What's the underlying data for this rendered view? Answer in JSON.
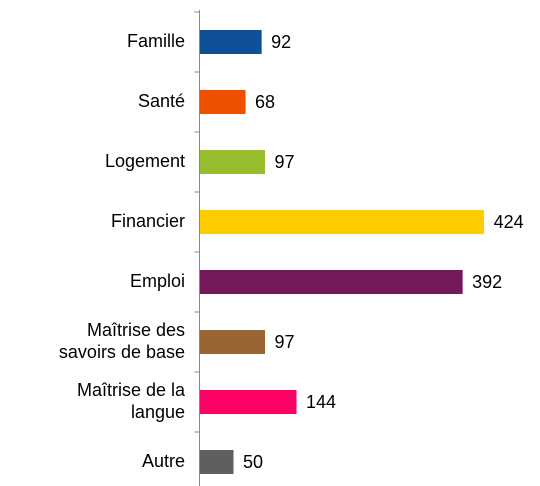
{
  "chart_data": {
    "type": "bar",
    "orientation": "horizontal",
    "categories": [
      "Famille",
      "Santé",
      "Logement",
      "Financier",
      "Emploi",
      "Maîtrise des\nsavoirs de base",
      "Maîtrise de la\nlangue",
      "Autre"
    ],
    "values": [
      92,
      68,
      97,
      424,
      392,
      97,
      144,
      50
    ],
    "colors": [
      "#0e4f96",
      "#ef5000",
      "#96bd2d",
      "#ffcc00",
      "#76185c",
      "#996633",
      "#ff0066",
      "#5f5f5f"
    ]
  }
}
